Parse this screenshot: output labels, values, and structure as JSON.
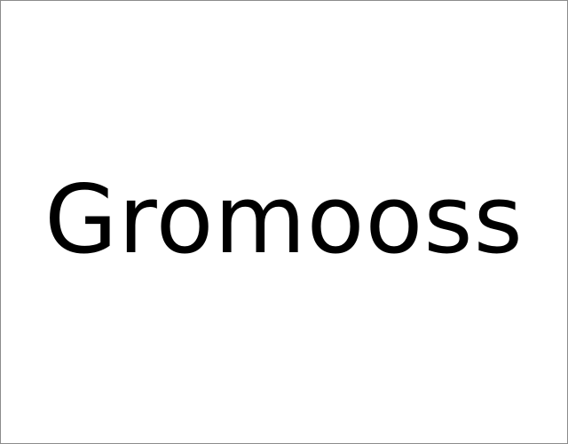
{
  "logo": {
    "text": "Gromooss",
    "text_color": "#000000",
    "background_color": "#ffffff",
    "border_color": "#8c8c8c"
  }
}
